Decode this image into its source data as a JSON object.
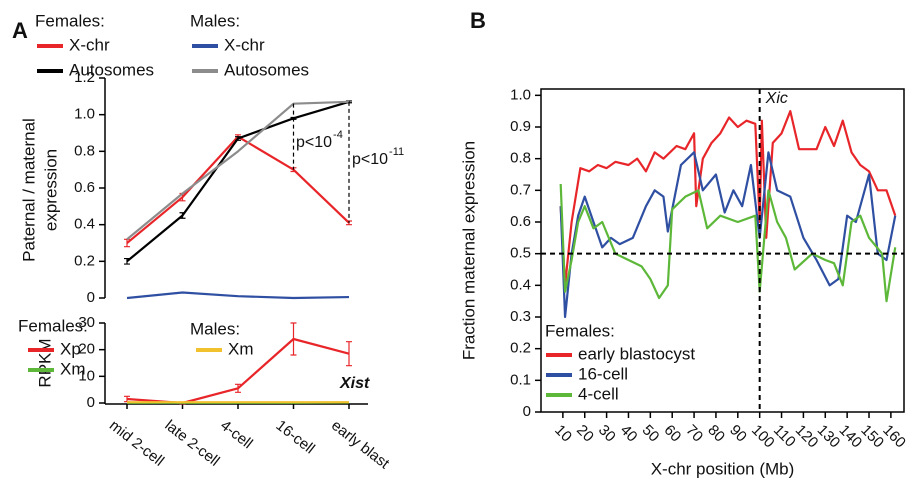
{
  "chart_data": [
    {
      "type": "line",
      "panel_label": "A",
      "ylabel": [
        "Paternal / maternal",
        "expression"
      ],
      "ylim": [
        0,
        1.2
      ],
      "yticks": [
        0,
        0.2,
        0.4,
        0.6,
        0.8,
        {
          "value": 1,
          "label": "1.0"
        },
        1.2
      ],
      "series_groups": [
        {
          "title": "Females:",
          "series": [
            {
              "name": "X-chr",
              "color": "#e8262a",
              "values": [
                0.3,
                0.55,
                0.88,
                0.7,
                0.41
              ],
              "errors": [
                0.02,
                0.02,
                0.01,
                0.01,
                0.01
              ]
            },
            {
              "name": "Autosomes",
              "color": "#000000",
              "values": [
                0.2,
                0.45,
                0.87,
                0.98,
                1.07
              ],
              "errors": [
                0.015,
                0.015,
                0.01,
                0.005,
                0.005
              ]
            }
          ]
        },
        {
          "title": "Males:",
          "series": [
            {
              "name": "X-chr",
              "color": "#2f4fa2",
              "values": [
                0.0,
                0.03,
                0.01,
                0.0,
                0.005
              ]
            },
            {
              "name": "Autosomes",
              "color": "#8c8c8c",
              "values": [
                0.32,
                0.57,
                0.8,
                1.06,
                1.07
              ]
            }
          ]
        }
      ],
      "annotations": [
        {
          "text": "p<10",
          "exponent": "-4"
        },
        {
          "text": "p<10",
          "exponent": "-11"
        }
      ]
    },
    {
      "type": "line",
      "ylabel": "RPKM",
      "categories": [
        "mid 2-cell",
        "late 2-cell",
        "4-cell",
        "16-cell",
        "early blast"
      ],
      "ylim": [
        0,
        30
      ],
      "yticks": [
        0,
        10,
        20,
        30
      ],
      "annotation": "Xist",
      "series_groups": [
        {
          "title": "Females:",
          "series": [
            {
              "name": "Xp",
              "color": "#e8262a",
              "values": [
                1.5,
                0,
                5.5,
                24,
                18.5
              ],
              "errors": [
                1,
                0.3,
                1.5,
                6,
                4.5
              ]
            },
            {
              "name": "Xm",
              "color": "#5db83a",
              "values": [
                0.1,
                0.1,
                0.1,
                0.1,
                0.2
              ]
            }
          ]
        },
        {
          "title": "Males:",
          "series": [
            {
              "name": "Xm",
              "color": "#f2c12e",
              "values": [
                0.3,
                0.3,
                0.3,
                0.3,
                0.3
              ]
            }
          ]
        }
      ]
    },
    {
      "type": "line",
      "panel_label": "B",
      "xlabel": "X-chr position (Mb)",
      "ylabel": "Fraction maternal expression",
      "xlim": [
        0,
        166
      ],
      "xticks": [
        10,
        20,
        30,
        40,
        50,
        60,
        70,
        80,
        90,
        100,
        110,
        120,
        130,
        140,
        150,
        160
      ],
      "ylim": [
        0,
        1.02
      ],
      "yticks": [
        0,
        0.1,
        0.2,
        0.3,
        0.4,
        0.5,
        0.6,
        0.7,
        0.8,
        0.9,
        {
          "value": 1,
          "label": "1.0"
        }
      ],
      "reference_lines": {
        "y": 0.5,
        "x": 100
      },
      "annotation": "Xic",
      "legend_title": "Females:",
      "series": [
        {
          "name": "early blastocyst",
          "color": "#e8262a",
          "x": [
            9,
            11,
            14,
            18,
            22,
            26,
            30,
            34,
            40,
            44,
            48,
            52,
            56,
            62,
            66,
            70,
            71,
            74,
            78,
            82,
            86,
            90,
            94,
            98,
            100,
            101,
            103,
            106,
            110,
            114,
            118,
            126,
            130,
            134,
            138,
            142,
            146,
            150,
            154,
            158,
            162
          ],
          "values": [
            0.65,
            0.4,
            0.6,
            0.77,
            0.76,
            0.78,
            0.77,
            0.79,
            0.78,
            0.8,
            0.76,
            0.82,
            0.8,
            0.84,
            0.83,
            0.88,
            0.65,
            0.8,
            0.85,
            0.88,
            0.93,
            0.9,
            0.92,
            0.91,
            0.6,
            0.92,
            0.55,
            0.85,
            0.88,
            0.95,
            0.83,
            0.83,
            0.9,
            0.84,
            0.92,
            0.82,
            0.78,
            0.76,
            0.7,
            0.7,
            0.62
          ]
        },
        {
          "name": "16-cell",
          "color": "#2f4fa2",
          "x": [
            9,
            11,
            14,
            17,
            20,
            24,
            28,
            32,
            36,
            42,
            48,
            52,
            56,
            58,
            64,
            70,
            74,
            80,
            84,
            88,
            92,
            96,
            100,
            104,
            108,
            114,
            120,
            126,
            132,
            136,
            140,
            144,
            150,
            154,
            158,
            162
          ],
          "values": [
            0.65,
            0.3,
            0.5,
            0.62,
            0.68,
            0.6,
            0.52,
            0.55,
            0.53,
            0.55,
            0.65,
            0.7,
            0.68,
            0.57,
            0.78,
            0.82,
            0.7,
            0.75,
            0.63,
            0.7,
            0.65,
            0.78,
            0.55,
            0.82,
            0.7,
            0.68,
            0.55,
            0.48,
            0.4,
            0.42,
            0.62,
            0.6,
            0.75,
            0.5,
            0.48,
            0.62
          ]
        },
        {
          "name": "4-cell",
          "color": "#5db83a",
          "x": [
            9,
            11,
            14,
            17,
            20,
            24,
            28,
            34,
            40,
            46,
            50,
            54,
            58,
            60,
            66,
            72,
            76,
            82,
            90,
            98,
            100,
            104,
            108,
            112,
            116,
            124,
            130,
            134,
            138,
            142,
            146,
            150,
            156,
            158,
            162
          ],
          "values": [
            0.72,
            0.38,
            0.48,
            0.6,
            0.65,
            0.58,
            0.6,
            0.5,
            0.48,
            0.46,
            0.42,
            0.36,
            0.4,
            0.64,
            0.68,
            0.7,
            0.58,
            0.62,
            0.6,
            0.62,
            0.38,
            0.7,
            0.6,
            0.55,
            0.45,
            0.5,
            0.48,
            0.47,
            0.4,
            0.6,
            0.62,
            0.55,
            0.5,
            0.35,
            0.52
          ]
        }
      ]
    }
  ]
}
